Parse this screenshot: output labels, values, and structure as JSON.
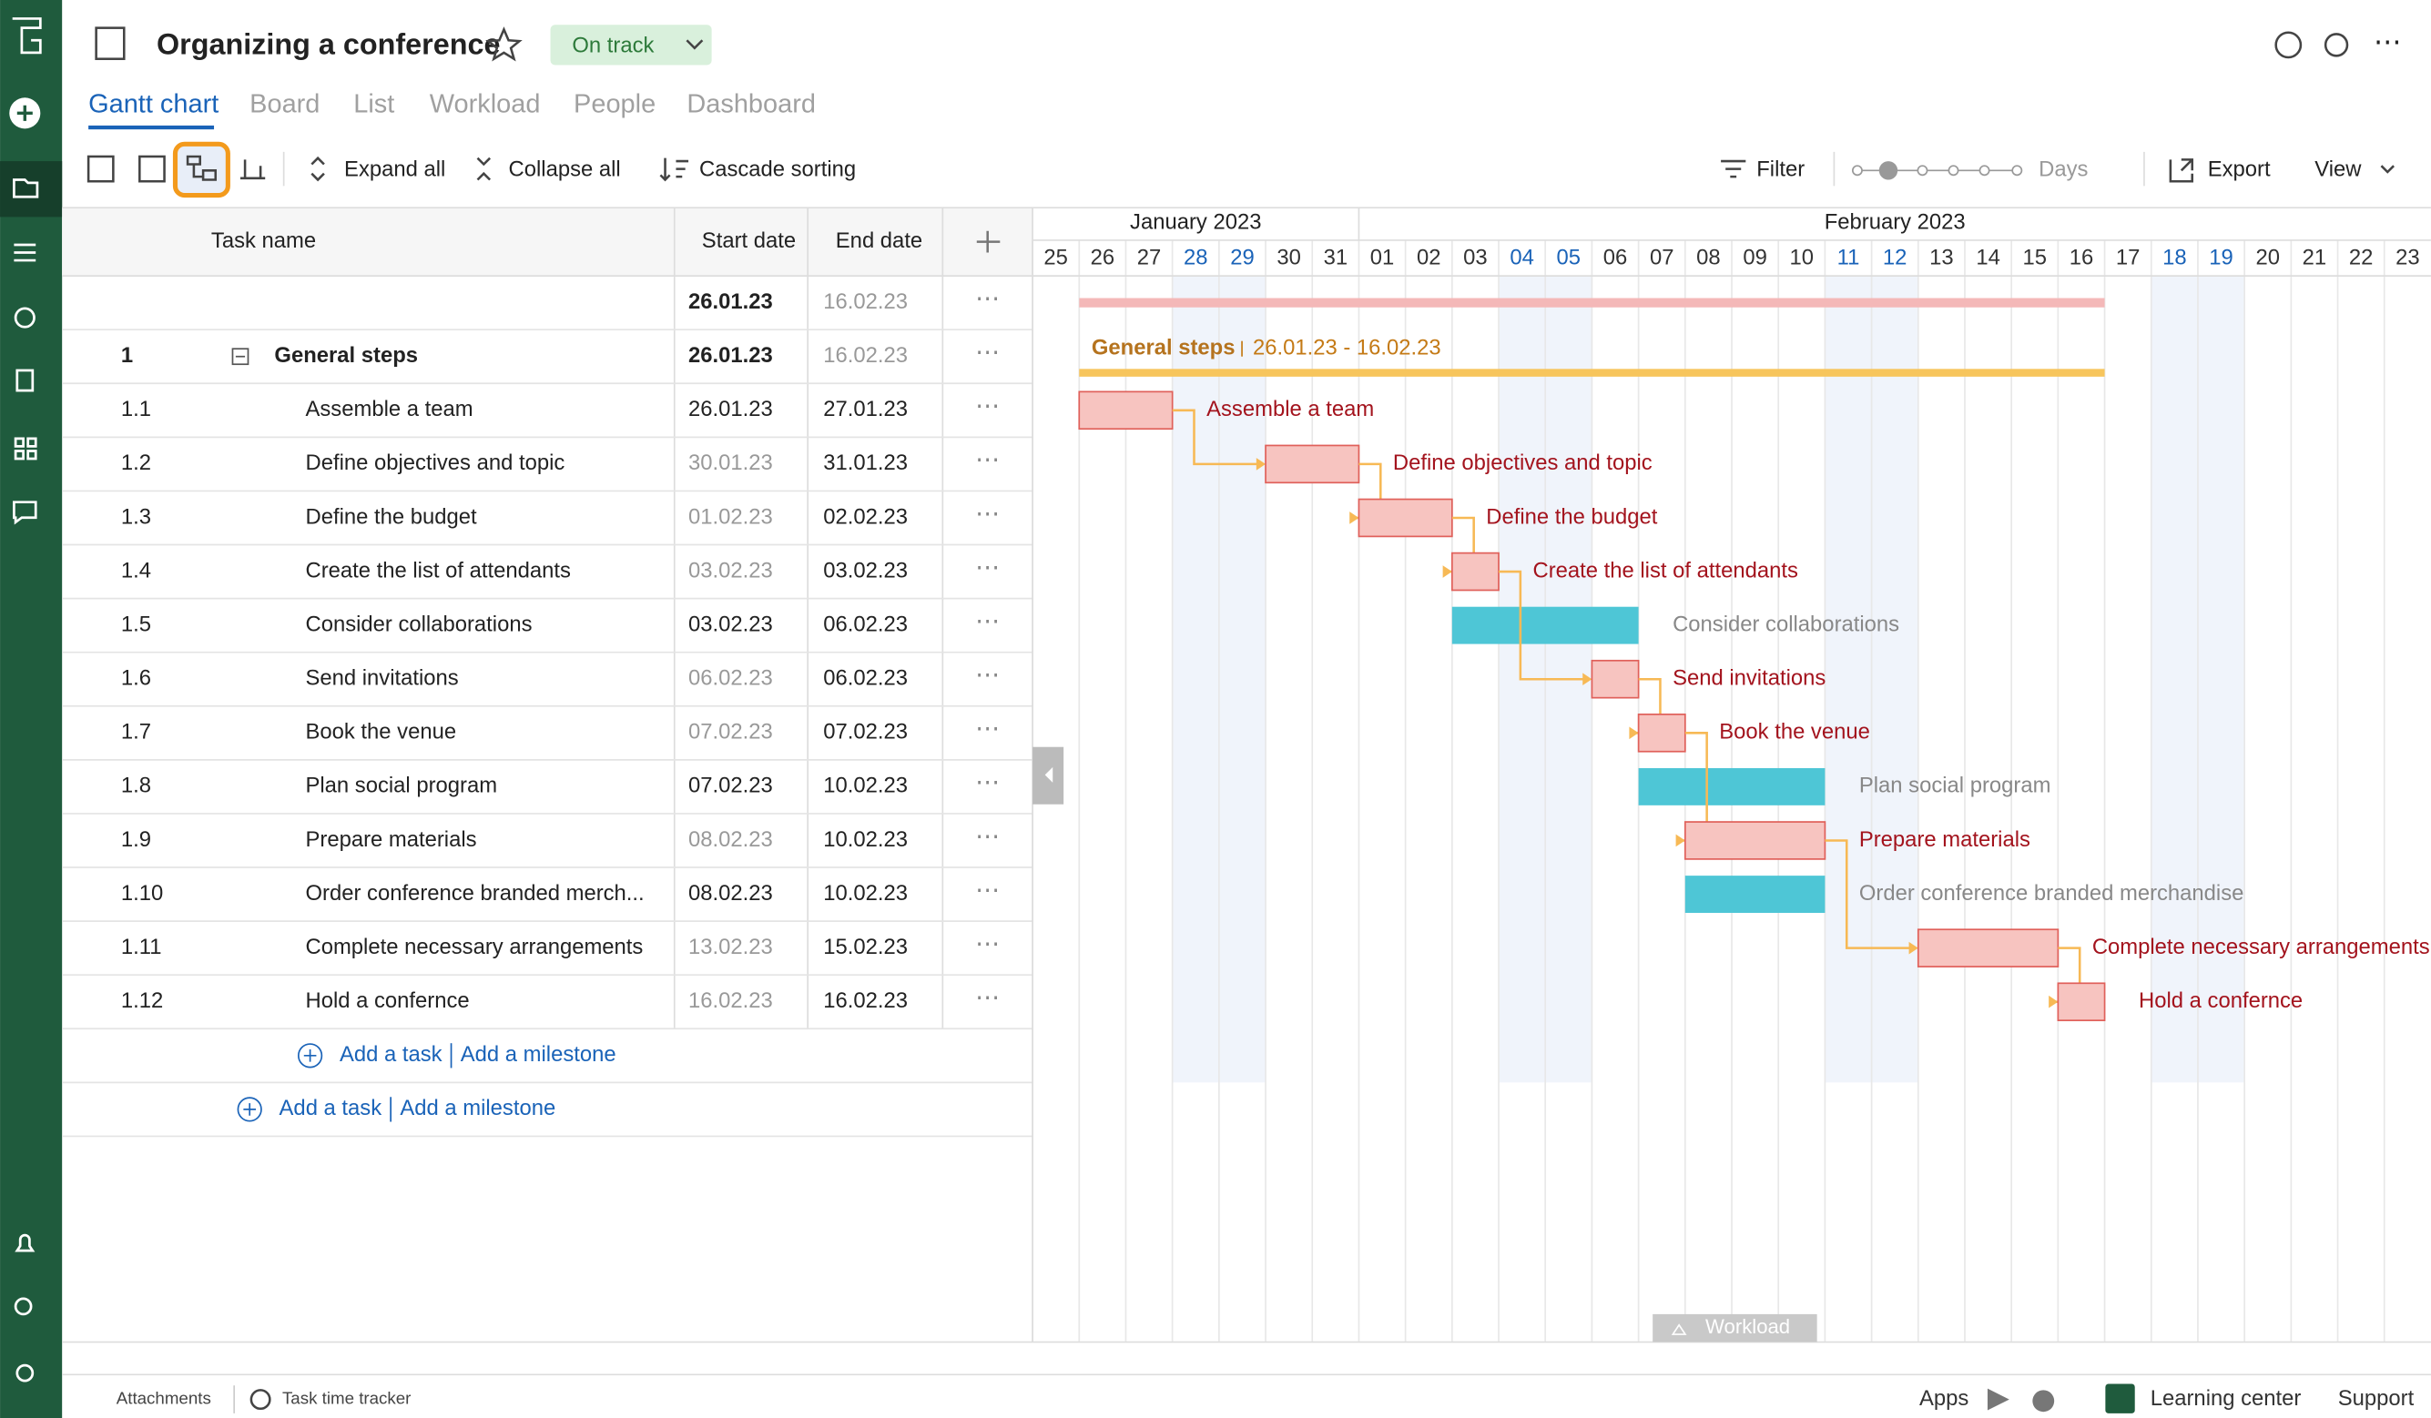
{
  "header": {
    "title": "Organizing a conference",
    "status": "On track",
    "tabs": [
      "Gantt chart",
      "Board",
      "List",
      "Workload",
      "People",
      "Dashboard"
    ]
  },
  "toolbar": {
    "expand": "Expand all",
    "collapse": "Collapse all",
    "sort": "Cascade sorting",
    "filter": "Filter",
    "scale": "Days",
    "export": "Export",
    "view": "View"
  },
  "table": {
    "columns": [
      "Task name",
      "Start date",
      "End date"
    ],
    "summary": {
      "start": "26.01.23",
      "end": "16.02.23",
      "start_color": "#222",
      "end_color": "#999"
    },
    "rows": [
      {
        "id": "1",
        "name": "General steps",
        "start": "26.01.23",
        "end": "16.02.23",
        "group": true,
        "start_color": "#222",
        "end_color": "#999"
      },
      {
        "id": "1.1",
        "name": "Assemble a team",
        "start": "26.01.23",
        "end": "27.01.23",
        "critical": true,
        "start_color": "#222",
        "end_color": "#222"
      },
      {
        "id": "1.2",
        "name": "Define objectives and topic",
        "start": "30.01.23",
        "end": "31.01.23",
        "critical": true,
        "start_color": "#999",
        "end_color": "#222"
      },
      {
        "id": "1.3",
        "name": "Define the budget",
        "start": "01.02.23",
        "end": "02.02.23",
        "critical": true,
        "start_color": "#999",
        "end_color": "#222"
      },
      {
        "id": "1.4",
        "name": "Create the list of attendants",
        "start": "03.02.23",
        "end": "03.02.23",
        "critical": true,
        "start_color": "#999",
        "end_color": "#222"
      },
      {
        "id": "1.5",
        "name": "Consider collaborations",
        "start": "03.02.23",
        "end": "06.02.23",
        "critical": false,
        "start_color": "#222",
        "end_color": "#222"
      },
      {
        "id": "1.6",
        "name": "Send invitations",
        "start": "06.02.23",
        "end": "06.02.23",
        "critical": true,
        "start_color": "#999",
        "end_color": "#222"
      },
      {
        "id": "1.7",
        "name": "Book the venue",
        "start": "07.02.23",
        "end": "07.02.23",
        "critical": true,
        "start_color": "#999",
        "end_color": "#222"
      },
      {
        "id": "1.8",
        "name": "Plan social program",
        "start": "07.02.23",
        "end": "10.02.23",
        "critical": false,
        "start_color": "#222",
        "end_color": "#222"
      },
      {
        "id": "1.9",
        "name": "Prepare materials",
        "start": "08.02.23",
        "end": "10.02.23",
        "critical": true,
        "start_color": "#999",
        "end_color": "#222"
      },
      {
        "id": "1.10",
        "name": "Order conference branded merch...",
        "full_name": "Order conference branded merchandise",
        "start": "08.02.23",
        "end": "10.02.23",
        "critical": false,
        "start_color": "#222",
        "end_color": "#222"
      },
      {
        "id": "1.11",
        "name": "Complete necessary arrangements",
        "start": "13.02.23",
        "end": "15.02.23",
        "critical": true,
        "start_color": "#999",
        "end_color": "#222"
      },
      {
        "id": "1.12",
        "name": "Hold a confernce",
        "start": "16.02.23",
        "end": "16.02.23",
        "critical": true,
        "start_color": "#999",
        "end_color": "#222"
      }
    ],
    "add_task": "Add a task",
    "add_milestone": "Add a milestone"
  },
  "timeline": {
    "months": [
      "January 2023",
      "February 2023"
    ],
    "days": [
      "25",
      "26",
      "27",
      "28",
      "29",
      "30",
      "31",
      "01",
      "02",
      "03",
      "04",
      "05",
      "06",
      "07",
      "08",
      "09",
      "10",
      "11",
      "12",
      "13",
      "14",
      "15",
      "16",
      "17",
      "18",
      "19",
      "20",
      "21",
      "22",
      "23"
    ],
    "weekends": [
      "28",
      "29",
      "04",
      "05",
      "11",
      "12",
      "18",
      "19"
    ],
    "group_label": "General steps",
    "group_range": "26.01.23 - 16.02.23"
  },
  "workload": "Workload",
  "footer": {
    "attachments": "Attachments",
    "tracker": "Task time tracker",
    "apps": "Apps",
    "learning": "Learning center",
    "support": "Support"
  }
}
